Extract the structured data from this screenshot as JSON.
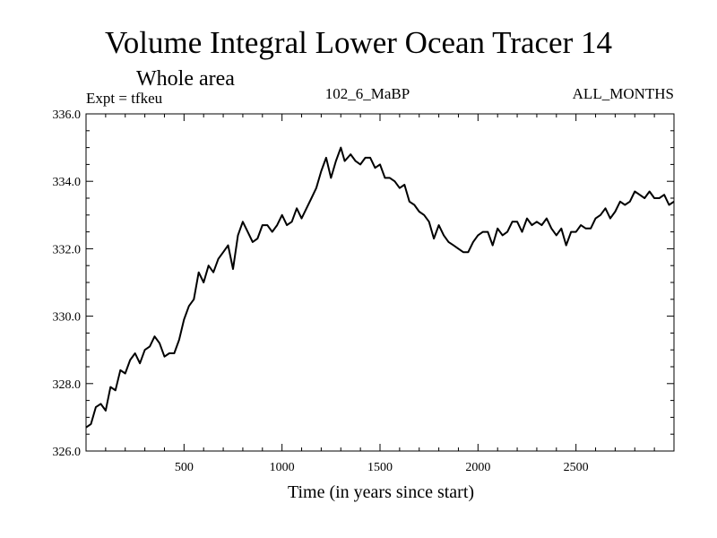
{
  "chart_data": {
    "type": "line",
    "title": "Volume Integral Lower Ocean Tracer 14",
    "subtitle": "Whole area",
    "annotations": {
      "left": "Expt = tfkeu",
      "center": "102_6_MaBP",
      "right": "ALL_MONTHS"
    },
    "xlabel": "Time (in years since start)",
    "ylabel": "",
    "xlim": [
      0,
      3000
    ],
    "ylim": [
      326.0,
      336.0
    ],
    "xticks": [
      500,
      1000,
      1500,
      2000,
      2500
    ],
    "xtick_labels": [
      "500",
      "1000",
      "1500",
      "2000",
      "2500"
    ],
    "yticks": [
      326,
      328,
      330,
      332,
      334,
      336
    ],
    "ytick_labels": [
      "326.0",
      "328.0",
      "330.0",
      "332.0",
      "334.0",
      "336.0"
    ],
    "grid": false,
    "legend": "none",
    "series": [
      {
        "color": "#000000",
        "x": [
          0,
          25,
          50,
          75,
          100,
          125,
          150,
          175,
          200,
          225,
          250,
          275,
          300,
          325,
          350,
          375,
          400,
          425,
          450,
          475,
          500,
          525,
          550,
          575,
          600,
          625,
          650,
          675,
          700,
          725,
          750,
          775,
          800,
          825,
          850,
          875,
          900,
          925,
          950,
          975,
          1000,
          1025,
          1050,
          1075,
          1100,
          1125,
          1150,
          1175,
          1200,
          1225,
          1250,
          1275,
          1300,
          1320,
          1350,
          1375,
          1400,
          1425,
          1450,
          1475,
          1500,
          1525,
          1550,
          1575,
          1600,
          1625,
          1650,
          1675,
          1700,
          1725,
          1750,
          1775,
          1800,
          1825,
          1850,
          1875,
          1900,
          1925,
          1950,
          1975,
          2000,
          2025,
          2050,
          2075,
          2100,
          2125,
          2150,
          2175,
          2200,
          2225,
          2250,
          2275,
          2300,
          2325,
          2350,
          2375,
          2400,
          2425,
          2450,
          2475,
          2500,
          2525,
          2550,
          2575,
          2600,
          2625,
          2650,
          2675,
          2700,
          2725,
          2750,
          2775,
          2800,
          2825,
          2850,
          2875,
          2900,
          2925,
          2950,
          2975,
          3000
        ],
        "y": [
          326.7,
          326.8,
          327.3,
          327.4,
          327.2,
          327.9,
          327.8,
          328.4,
          328.3,
          328.7,
          328.9,
          328.6,
          329.0,
          329.1,
          329.4,
          329.2,
          328.8,
          328.9,
          328.9,
          329.3,
          329.9,
          330.3,
          330.5,
          331.3,
          331.0,
          331.5,
          331.3,
          331.7,
          331.9,
          332.1,
          331.4,
          332.4,
          332.8,
          332.5,
          332.2,
          332.3,
          332.7,
          332.7,
          332.5,
          332.7,
          333.0,
          332.7,
          332.8,
          333.2,
          332.9,
          333.2,
          333.5,
          333.8,
          334.3,
          334.7,
          334.1,
          334.6,
          335.0,
          334.6,
          334.8,
          334.6,
          334.5,
          334.7,
          334.7,
          334.4,
          334.5,
          334.1,
          334.1,
          334.0,
          333.8,
          333.9,
          333.4,
          333.3,
          333.1,
          333.0,
          332.8,
          332.3,
          332.7,
          332.4,
          332.2,
          332.1,
          332.0,
          331.9,
          331.9,
          332.2,
          332.4,
          332.5,
          332.5,
          332.1,
          332.6,
          332.4,
          332.5,
          332.8,
          332.8,
          332.5,
          332.9,
          332.7,
          332.8,
          332.7,
          332.9,
          332.6,
          332.4,
          332.6,
          332.1,
          332.5,
          332.5,
          332.7,
          332.6,
          332.6,
          332.9,
          333.0,
          333.2,
          332.9,
          333.1,
          333.4,
          333.3,
          333.4,
          333.7,
          333.6,
          333.5,
          333.7,
          333.5,
          333.5,
          333.6,
          333.3,
          333.4
        ]
      }
    ]
  }
}
